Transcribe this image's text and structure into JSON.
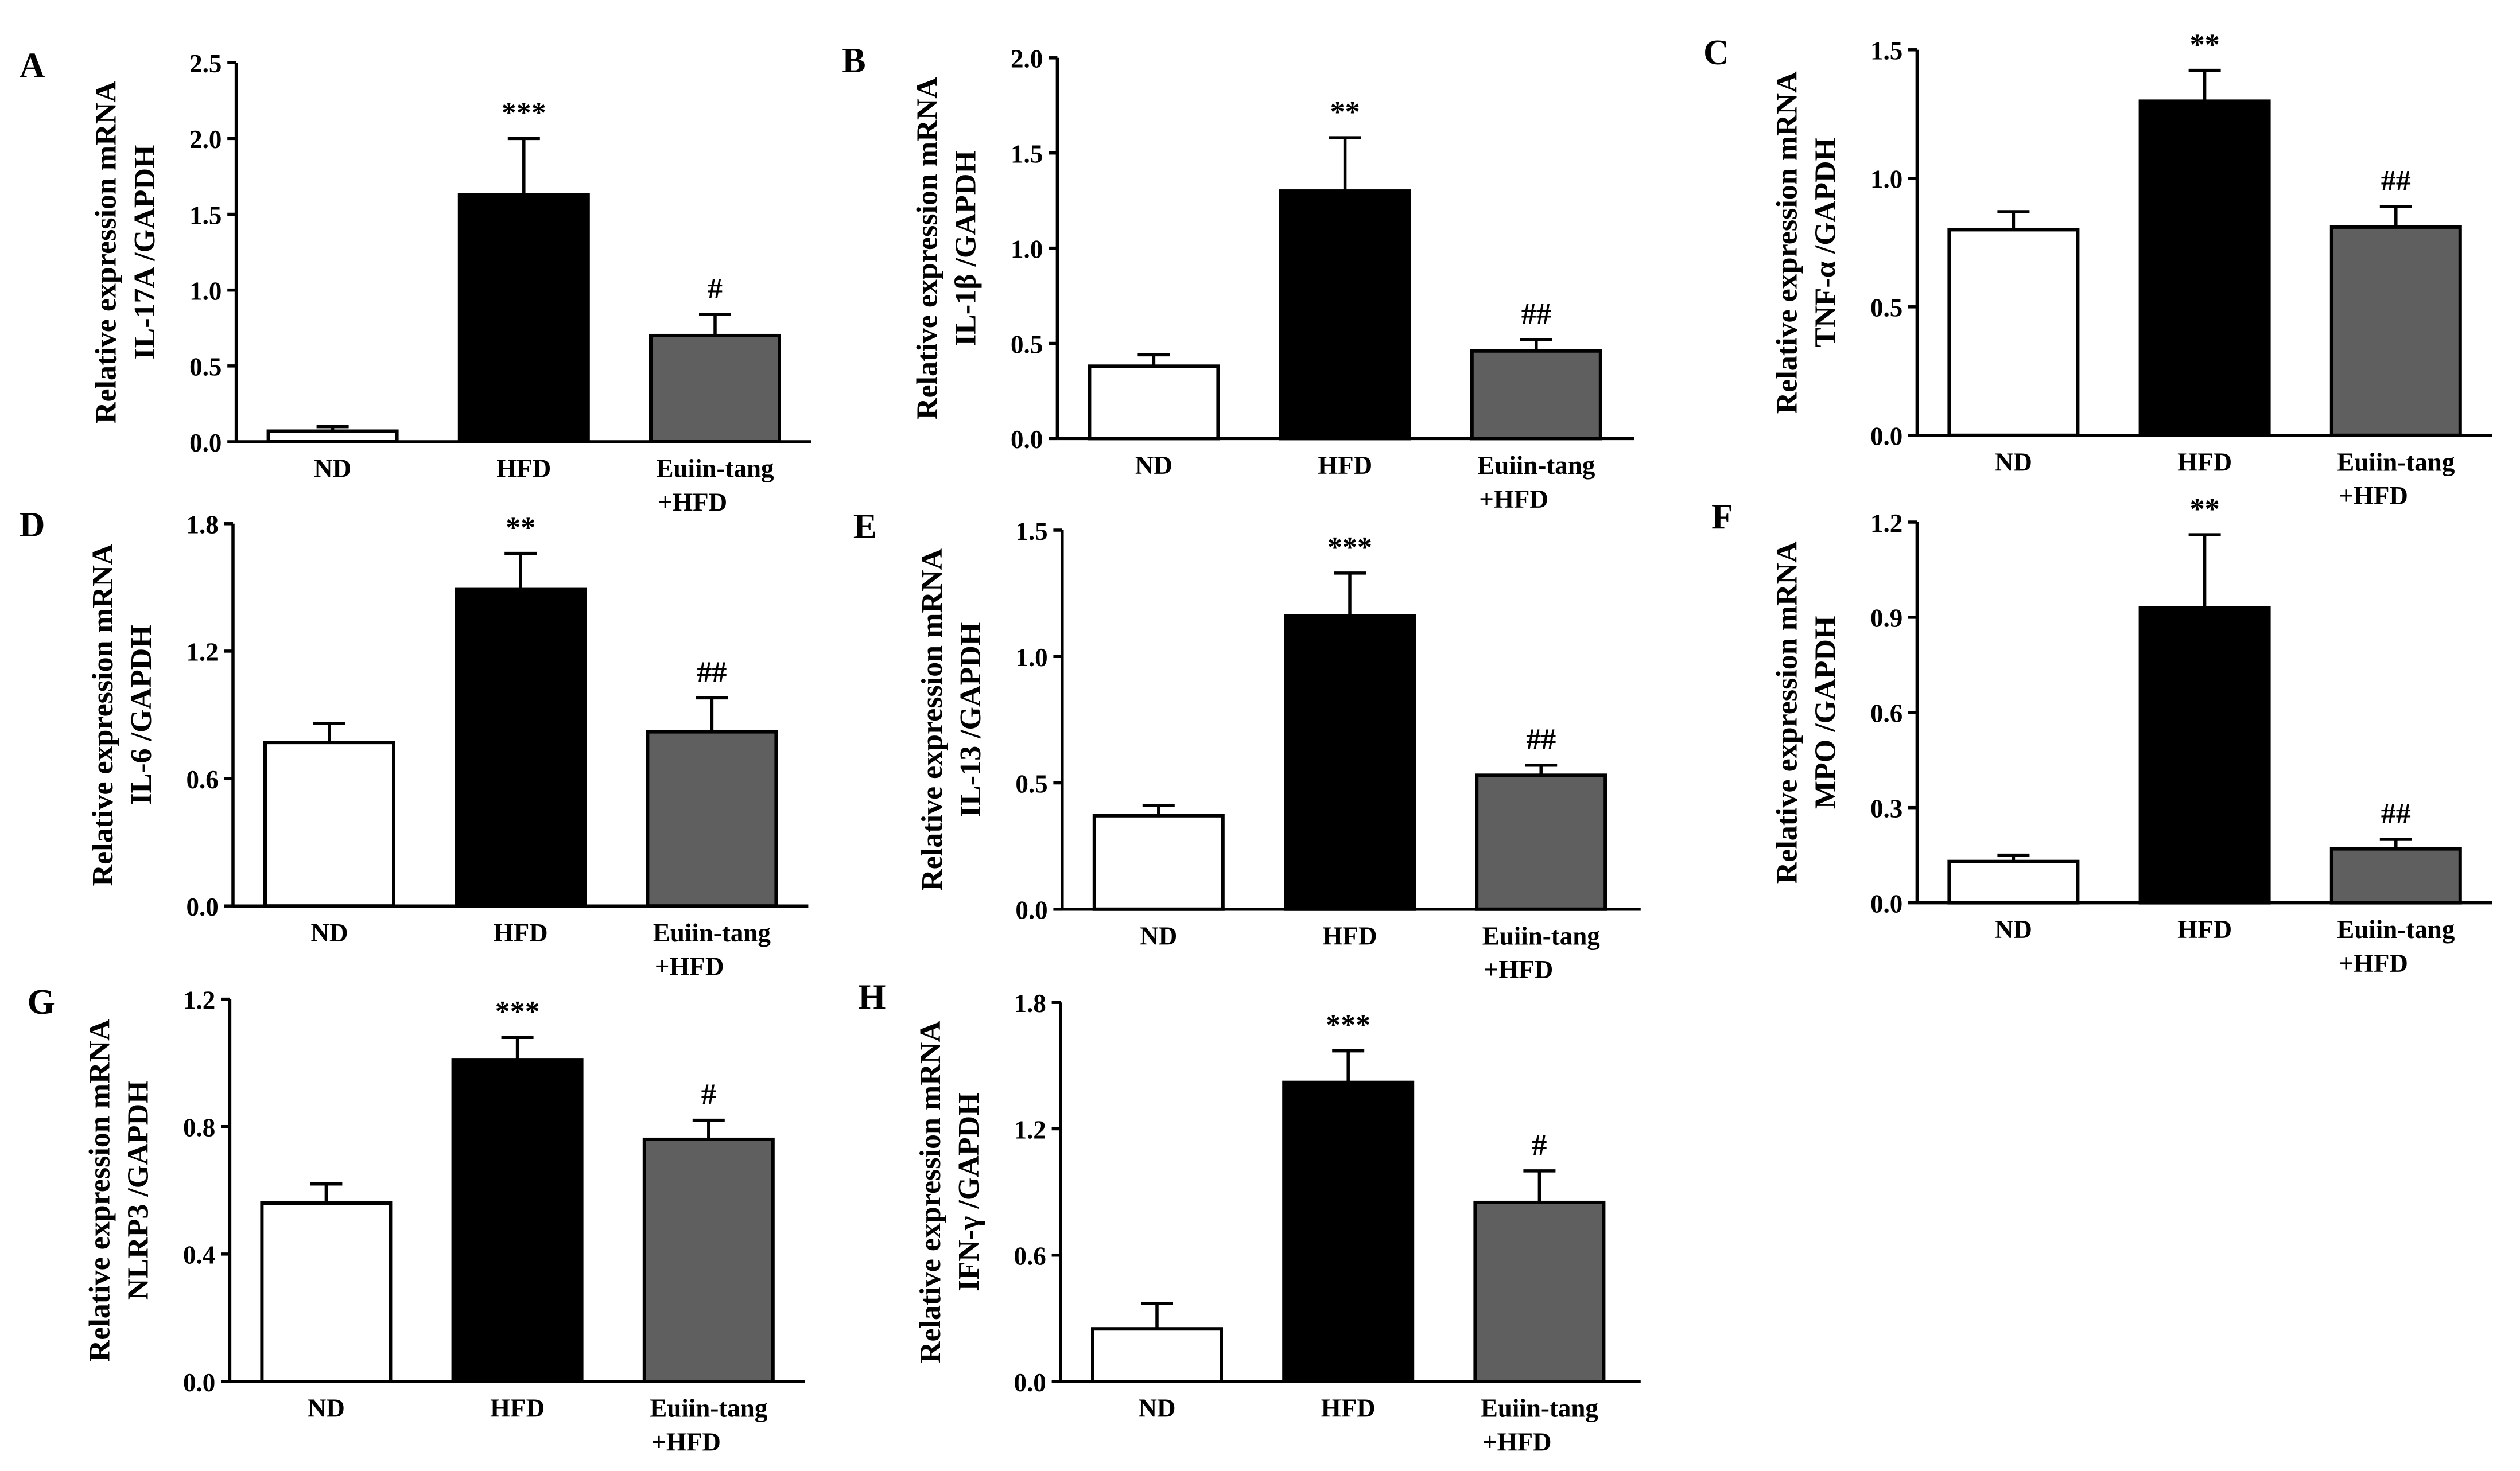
{
  "colors": {
    "ND": "#ffffff",
    "HFD": "#000000",
    "Euiin": "#5f5f5f",
    "stroke": "#000000"
  },
  "chart_data": [
    {
      "type": "bar",
      "panel": "A",
      "categories": [
        "ND",
        "HFD",
        "Euiin-tang\n+HFD"
      ],
      "values": [
        0.07,
        1.63,
        0.7
      ],
      "errors": [
        0.03,
        0.37,
        0.14
      ],
      "sig": [
        "",
        "***",
        "#"
      ],
      "ylabel": [
        "Relative expression mRNA",
        "IL-17A /GAPDH"
      ],
      "ylim": [
        0,
        2.5
      ],
      "yticks": [
        0,
        0.5,
        1.0,
        1.5,
        2.0,
        2.5
      ],
      "yticklabels": [
        "0.0",
        "0.5",
        "1.0",
        "1.5",
        "2.0",
        "2.5"
      ]
    },
    {
      "type": "bar",
      "panel": "B",
      "categories": [
        "ND",
        "HFD",
        "Euiin-tang\n+HFD"
      ],
      "values": [
        0.38,
        1.3,
        0.46
      ],
      "errors": [
        0.06,
        0.28,
        0.06
      ],
      "sig": [
        "",
        "**",
        "##"
      ],
      "ylabel": [
        "Relative expression mRNA",
        "IL-1β /GAPDH"
      ],
      "ylim": [
        0,
        2.0
      ],
      "yticks": [
        0,
        0.5,
        1.0,
        1.5,
        2.0
      ],
      "yticklabels": [
        "0.0",
        "0.5",
        "1.0",
        "1.5",
        "2.0"
      ]
    },
    {
      "type": "bar",
      "panel": "C",
      "categories": [
        "ND",
        "HFD",
        "Euiin-tang\n+HFD"
      ],
      "values": [
        0.8,
        1.3,
        0.81
      ],
      "errors": [
        0.07,
        0.12,
        0.08
      ],
      "sig": [
        "",
        "**",
        "##"
      ],
      "ylabel": [
        "Relative expression mRNA",
        "TNF-α /GAPDH"
      ],
      "ylim": [
        0,
        1.5
      ],
      "yticks": [
        0,
        0.5,
        1.0,
        1.5
      ],
      "yticklabels": [
        "0.0",
        "0.5",
        "1.0",
        "1.5"
      ]
    },
    {
      "type": "bar",
      "panel": "D",
      "categories": [
        "ND",
        "HFD",
        "Euiin-tang\n+HFD"
      ],
      "values": [
        0.77,
        1.49,
        0.82
      ],
      "errors": [
        0.09,
        0.17,
        0.16
      ],
      "sig": [
        "",
        "**",
        "##"
      ],
      "ylabel": [
        "Relative expression mRNA",
        "IL-6 /GAPDH"
      ],
      "ylim": [
        0,
        1.8
      ],
      "yticks": [
        0,
        0.6,
        1.2,
        1.8
      ],
      "yticklabels": [
        "0.0",
        "0.6",
        "1.2",
        "1.8"
      ]
    },
    {
      "type": "bar",
      "panel": "E",
      "categories": [
        "ND",
        "HFD",
        "Euiin-tang\n+HFD"
      ],
      "values": [
        0.37,
        1.16,
        0.53
      ],
      "errors": [
        0.04,
        0.17,
        0.04
      ],
      "sig": [
        "",
        "***",
        "##"
      ],
      "ylabel": [
        "Relative expression mRNA",
        "IL-13 /GAPDH"
      ],
      "ylim": [
        0,
        1.5
      ],
      "yticks": [
        0,
        0.5,
        1.0,
        1.5
      ],
      "yticklabels": [
        "0.0",
        "0.5",
        "1.0",
        "1.5"
      ]
    },
    {
      "type": "bar",
      "panel": "F",
      "categories": [
        "ND",
        "HFD",
        "Euiin-tang\n+HFD"
      ],
      "values": [
        0.13,
        0.93,
        0.17
      ],
      "errors": [
        0.02,
        0.23,
        0.03
      ],
      "sig": [
        "",
        "**",
        "##"
      ],
      "ylabel": [
        "Relative expression mRNA",
        "MPO /GAPDH"
      ],
      "ylim": [
        0,
        1.2
      ],
      "yticks": [
        0,
        0.3,
        0.6,
        0.9,
        1.2
      ],
      "yticklabels": [
        "0.0",
        "0.3",
        "0.6",
        "0.9",
        "1.2"
      ]
    },
    {
      "type": "bar",
      "panel": "G",
      "categories": [
        "ND",
        "HFD",
        "Euiin-tang\n+HFD"
      ],
      "values": [
        0.56,
        1.01,
        0.76
      ],
      "errors": [
        0.06,
        0.07,
        0.06
      ],
      "sig": [
        "",
        "***",
        "#"
      ],
      "ylabel": [
        "Relative expression mRNA",
        "NLRP3 /GAPDH"
      ],
      "ylim": [
        0,
        1.2
      ],
      "yticks": [
        0,
        0.4,
        0.8,
        1.2
      ],
      "yticklabels": [
        "0.0",
        "0.4",
        "0.8",
        "1.2"
      ]
    },
    {
      "type": "bar",
      "panel": "H",
      "categories": [
        "ND",
        "HFD",
        "Euiin-tang\n+HFD"
      ],
      "values": [
        0.25,
        1.42,
        0.85
      ],
      "errors": [
        0.12,
        0.15,
        0.15
      ],
      "sig": [
        "",
        "***",
        "#"
      ],
      "ylabel": [
        "Relative expression mRNA",
        "IFN-γ /GAPDH"
      ],
      "ylim": [
        0,
        1.8
      ],
      "yticks": [
        0,
        0.6,
        1.2,
        1.8
      ],
      "yticklabels": [
        "0.0",
        "0.6",
        "1.2",
        "1.8"
      ]
    }
  ]
}
